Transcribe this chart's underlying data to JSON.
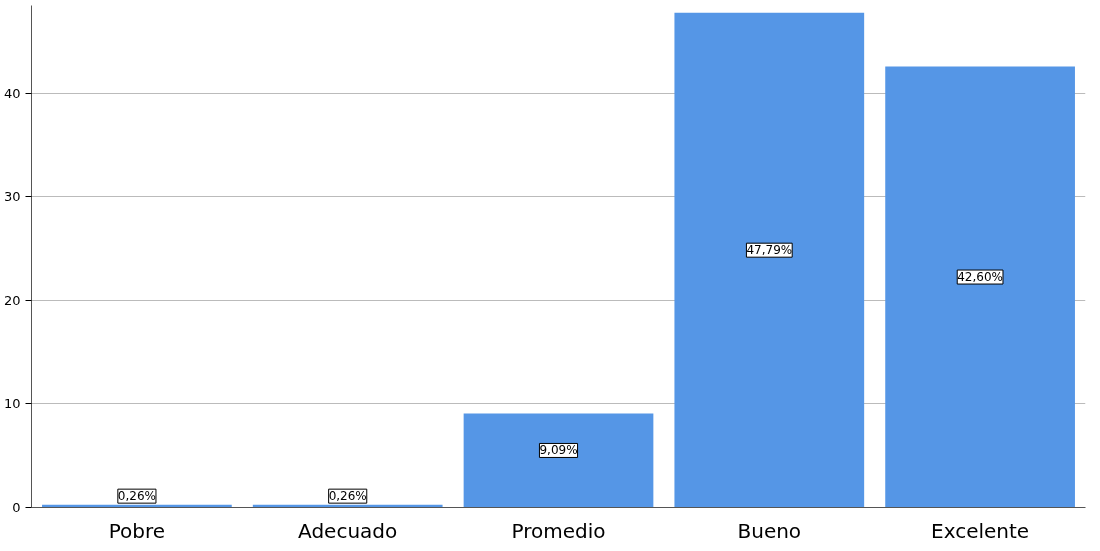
{
  "chart_data": {
    "type": "bar",
    "categories": [
      "Pobre",
      "Adecuado",
      "Promedio",
      "Bueno",
      "Excelente"
    ],
    "values": [
      0.26,
      0.26,
      9.09,
      47.79,
      42.6
    ],
    "value_labels": [
      "0,26%",
      "0,26%",
      "9,09%",
      "47,79%",
      "42,60%"
    ],
    "color": "#5596e6",
    "ylim": [
      0,
      48.5
    ],
    "yticks": [
      0,
      10,
      20,
      30,
      40
    ],
    "grid": "y"
  }
}
